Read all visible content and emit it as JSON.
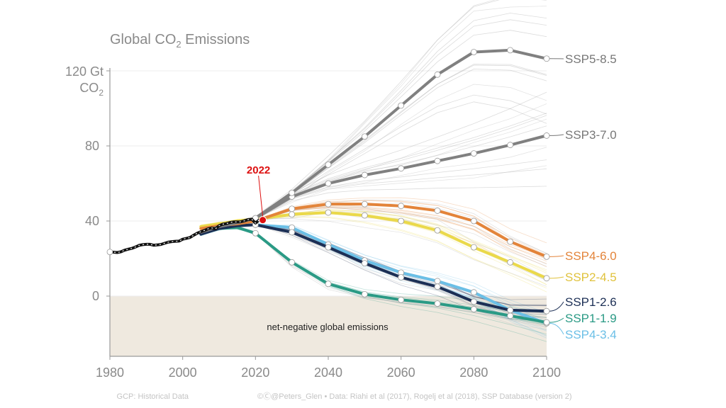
{
  "chart_data": {
    "type": "line",
    "title_prefix": "Global CO",
    "title_sub": "2",
    "title_suffix": " Emissions",
    "y_unit_line1": "120 Gt",
    "y_unit_line2": "CO",
    "y_unit_sub": "2",
    "xlim": [
      1980,
      2100
    ],
    "ylim": [
      -32,
      132
    ],
    "x_ticks": [
      1980,
      2000,
      2020,
      2040,
      2060,
      2080,
      2100
    ],
    "y_ticks": [
      0,
      40,
      80
    ],
    "grid": "horizontal",
    "net_negative_label": "net-negative global emissions",
    "marker": {
      "label": "2022",
      "x": 2022,
      "y": 40.5,
      "color": "#dd1111"
    },
    "historical": {
      "name": "",
      "color": "#111111",
      "x": [
        1980,
        1981,
        1982,
        1983,
        1984,
        1985,
        1986,
        1987,
        1988,
        1989,
        1990,
        1991,
        1992,
        1993,
        1994,
        1995,
        1996,
        1997,
        1998,
        1999,
        2000,
        2001,
        2002,
        2003,
        2004,
        2005,
        2006,
        2007,
        2008,
        2009,
        2010,
        2011,
        2012,
        2013,
        2014,
        2015,
        2016,
        2017,
        2018,
        2019,
        2020,
        2021,
        2022
      ],
      "y": [
        23.5,
        23.4,
        23.2,
        23.6,
        24.4,
        25.0,
        25.4,
        26.1,
        27.0,
        27.4,
        27.6,
        27.6,
        27.1,
        27.3,
        27.5,
        28.1,
        28.7,
        29.0,
        29.2,
        29.3,
        30.3,
        30.7,
        31.2,
        32.4,
        33.5,
        34.3,
        35.0,
        35.9,
        36.3,
        35.8,
        37.5,
        38.3,
        38.6,
        39.2,
        39.5,
        39.5,
        39.6,
        40.1,
        40.8,
        40.9,
        38.9,
        40.5,
        40.5
      ]
    },
    "series": [
      {
        "name": "SSP5-8.5",
        "color": "#808080",
        "label_color": "#777777",
        "x": [
          2005,
          2010,
          2015,
          2020,
          2030,
          2040,
          2050,
          2060,
          2070,
          2080,
          2090,
          2100
        ],
        "y": [
          34,
          37,
          39,
          41.5,
          55,
          70,
          85,
          101.5,
          118,
          130,
          131,
          126.5
        ]
      },
      {
        "name": "SSP3-7.0",
        "color": "#808080",
        "label_color": "#777777",
        "x": [
          2005,
          2010,
          2015,
          2020,
          2030,
          2040,
          2050,
          2060,
          2070,
          2080,
          2090,
          2100
        ],
        "y": [
          34,
          37,
          39,
          41.5,
          53,
          60,
          64.5,
          68,
          72,
          76,
          80.5,
          85.5
        ]
      },
      {
        "name": "SSP4-6.0",
        "color": "#e3843a",
        "label_color": "#e3843a",
        "x": [
          2005,
          2010,
          2015,
          2020,
          2030,
          2040,
          2050,
          2060,
          2070,
          2080,
          2090,
          2100
        ],
        "y": [
          36,
          37.5,
          38.5,
          40,
          46.5,
          49,
          49,
          48,
          45.5,
          40,
          29,
          21
        ]
      },
      {
        "name": "SSP2-4.5",
        "color": "#ead94a",
        "label_color": "#e0c23c",
        "x": [
          2005,
          2010,
          2015,
          2020,
          2030,
          2040,
          2050,
          2060,
          2070,
          2080,
          2090,
          2100
        ],
        "y": [
          37,
          38.5,
          40,
          41,
          43.5,
          44.5,
          43,
          40,
          35,
          26,
          18,
          9.5
        ]
      },
      {
        "name": "SSP4-3.4",
        "color": "#6bbfe6",
        "label_color": "#6bbfe6",
        "x": [
          2005,
          2010,
          2015,
          2020,
          2030,
          2040,
          2050,
          2060,
          2070,
          2080,
          2090,
          2100
        ],
        "y": [
          33,
          36,
          37.5,
          38,
          36.5,
          27.5,
          19,
          12.5,
          8,
          2,
          -7.5,
          -14.5
        ]
      },
      {
        "name": "SSP1-2.6",
        "color": "#1c2f55",
        "label_color": "#1c2f55",
        "x": [
          2005,
          2010,
          2015,
          2020,
          2030,
          2040,
          2050,
          2060,
          2070,
          2080,
          2090,
          2100
        ],
        "y": [
          33,
          36,
          37.5,
          38,
          34,
          26,
          17.5,
          10,
          5,
          -3,
          -7.5,
          -8
        ]
      },
      {
        "name": "SSP1-1.9",
        "color": "#2a9a85",
        "label_color": "#2a9a85",
        "x": [
          2005,
          2010,
          2015,
          2020,
          2030,
          2040,
          2050,
          2060,
          2070,
          2080,
          2090,
          2100
        ],
        "y": [
          33,
          36,
          36.5,
          33.5,
          18,
          6.5,
          1,
          -2,
          -4,
          -7,
          -10.5,
          -14
        ]
      }
    ],
    "footer": {
      "left": "GCP: Historical Data",
      "right": "©Ⓒ@Peters_Glen • Data: Riahi et al (2017), Rogelj et al (2018), SSP Database (version 2)"
    }
  }
}
